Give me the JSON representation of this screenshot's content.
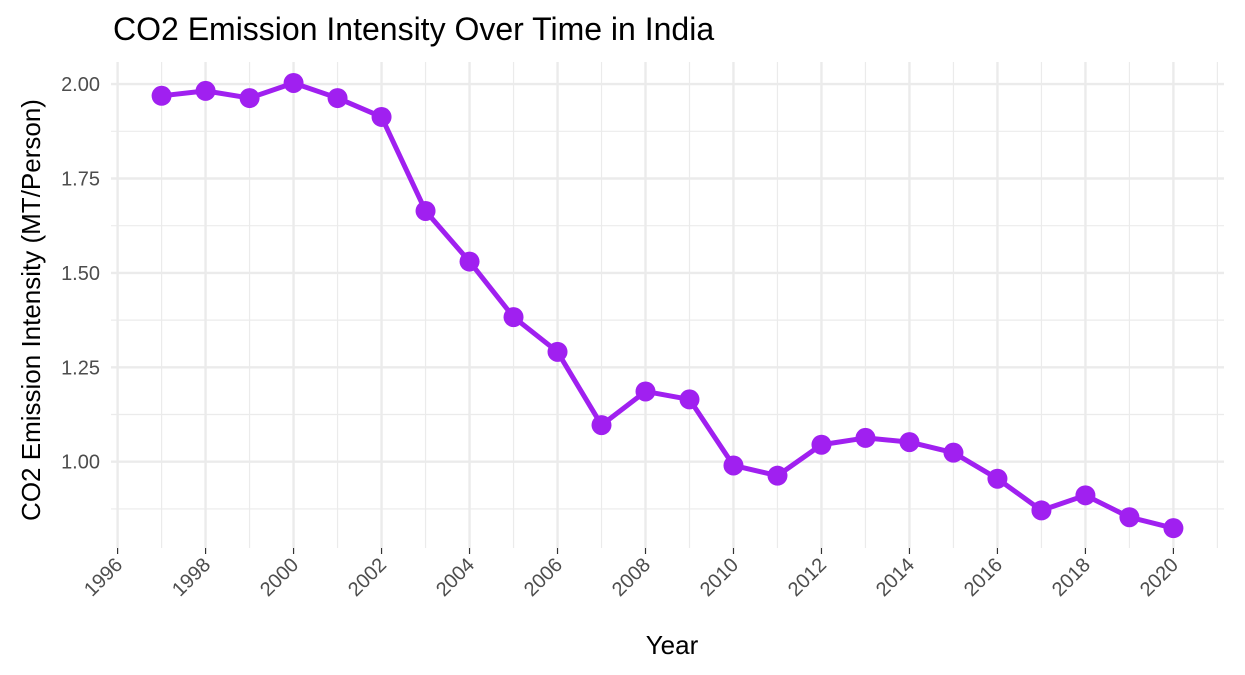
{
  "chart_data": {
    "type": "line",
    "title": "CO2 Emission Intensity Over Time in India",
    "x_label": "Year",
    "y_label": "CO2 Emission Intensity (MT/Person)",
    "x": [
      1997,
      1998,
      1999,
      2000,
      2001,
      2002,
      2003,
      2004,
      2005,
      2006,
      2007,
      2008,
      2009,
      2010,
      2011,
      2012,
      2013,
      2014,
      2015,
      2016,
      2017,
      2018,
      2019,
      2020
    ],
    "series": [
      {
        "color": "#a020f0",
        "values": [
          1.969,
          1.982,
          1.963,
          2.003,
          1.963,
          1.913,
          1.664,
          1.53,
          1.383,
          1.291,
          1.097,
          1.186,
          1.165,
          0.99,
          0.963,
          1.045,
          1.063,
          1.052,
          1.024,
          0.955,
          0.871,
          0.911,
          0.853,
          0.824
        ]
      }
    ],
    "xlim": [
      1995.85,
      2021.15
    ],
    "ylim": [
      0.7715,
      2.0585
    ],
    "xticks": [
      1996,
      1998,
      2000,
      2002,
      2004,
      2006,
      2008,
      2010,
      2012,
      2014,
      2016,
      2018,
      2020
    ],
    "yticks": [
      {
        "value": 1,
        "label": "1.00"
      },
      {
        "value": 1.25,
        "label": "1.25"
      },
      {
        "value": 1.5,
        "label": "1.50"
      },
      {
        "value": 1.75,
        "label": "1.75"
      },
      {
        "value": 2,
        "label": "2.00"
      }
    ],
    "x_minor_ticks": [
      1997,
      1999,
      2001,
      2003,
      2005,
      2007,
      2009,
      2011,
      2013,
      2015,
      2017,
      2019,
      2021
    ],
    "y_minor_ticks": [
      0.875,
      1.125,
      1.375,
      1.625,
      1.875
    ],
    "grid": true
  }
}
